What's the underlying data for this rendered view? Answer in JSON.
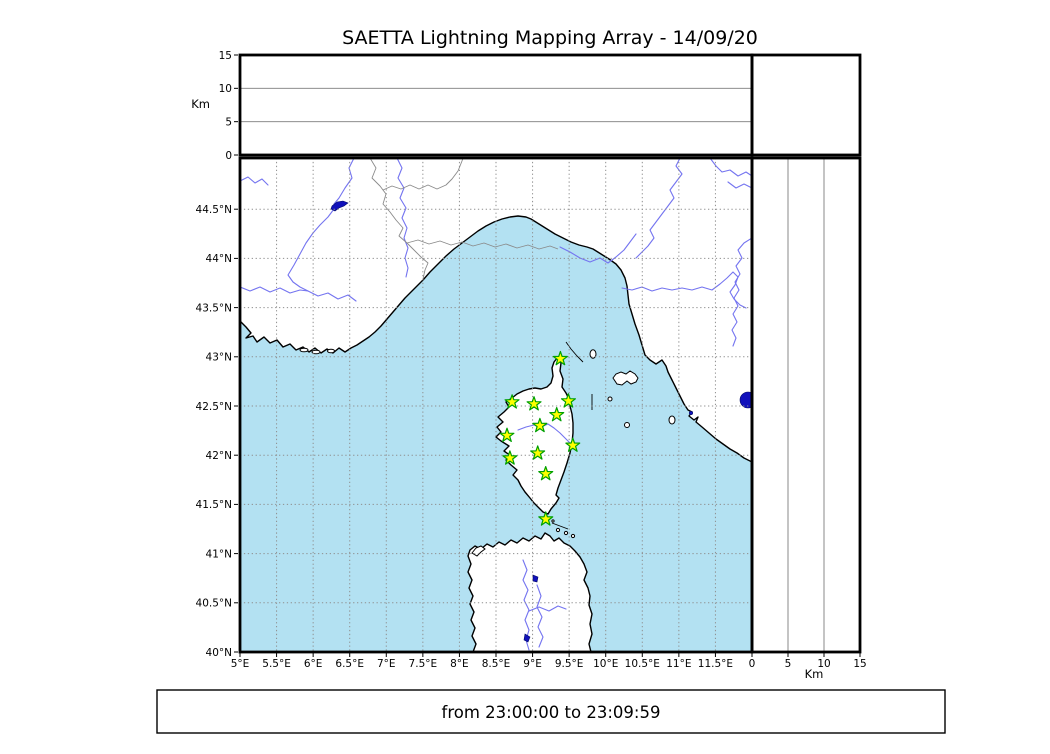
{
  "title": "SAETTA Lightning Mapping Array - 14/09/20",
  "caption": "from 23:00:00 to 23:09:59",
  "axes_labels": {
    "altitude_left": "Km",
    "altitude_bottom": "Km"
  },
  "colors": {
    "sea": "#b3e1f2",
    "land": "#ffffff",
    "coast": "#000000",
    "river": "#7474f0",
    "country_border": "#8a8a8a",
    "lake": "#1111bb",
    "grid": "#8f8f8f",
    "panel_grid": "#7d7d7d",
    "frame": "#000000",
    "star_fill": "#ffff00",
    "star_edge": "#00a000"
  },
  "chart_data": {
    "type": "scatter",
    "title": "SAETTA Lightning Mapping Array - 14/09/20",
    "time_range": "from 23:00:00 to 23:09:59",
    "map_panel": {
      "xlim": [
        5,
        12
      ],
      "ylim": [
        40,
        45.02
      ],
      "grid": true,
      "xtick_values": [
        5,
        5.5,
        6,
        6.5,
        7,
        7.5,
        8,
        8.5,
        9,
        9.5,
        10,
        10.5,
        11,
        11.5
      ],
      "xtick_labels": [
        "5°E",
        "5.5°E",
        "6°E",
        "6.5°E",
        "7°E",
        "7.5°E",
        "8°E",
        "8.5°E",
        "9°E",
        "9.5°E",
        "10°E",
        "10.5°E",
        "11°E",
        "11.5°E"
      ],
      "ytick_values": [
        40,
        40.5,
        41,
        41.5,
        42,
        42.5,
        43,
        43.5,
        44,
        44.5
      ],
      "ytick_labels": [
        "40°N",
        "40.5°N",
        "41°N",
        "41.5°N",
        "42°N",
        "42.5°N",
        "43°N",
        "43.5°N",
        "44°N",
        "44.5°N"
      ]
    },
    "altitude_panel_top": {
      "ylabel": "Km",
      "ylim": [
        0,
        15
      ],
      "ytick_values": [
        0,
        5,
        10,
        15
      ],
      "ytick_labels": [
        "0",
        "5",
        "10",
        "15"
      ],
      "gridlines_km": [
        5,
        10
      ],
      "series": []
    },
    "altitude_panel_right": {
      "xlabel": "Km",
      "xlim": [
        0,
        15
      ],
      "xtick_values": [
        0,
        5,
        10,
        15
      ],
      "xtick_labels": [
        "0",
        "5",
        "10",
        "15"
      ],
      "gridlines_km": [
        5,
        10
      ],
      "series": []
    },
    "stations_lon_lat": [
      [
        9.38,
        42.98
      ],
      [
        8.72,
        42.54
      ],
      [
        9.02,
        42.52
      ],
      [
        9.49,
        42.55
      ],
      [
        9.33,
        42.41
      ],
      [
        9.1,
        42.3
      ],
      [
        8.65,
        42.2
      ],
      [
        9.55,
        42.1
      ],
      [
        9.07,
        42.02
      ],
      [
        8.69,
        41.97
      ],
      [
        9.18,
        41.81
      ],
      [
        9.18,
        41.35
      ]
    ],
    "lightning_sources": []
  }
}
